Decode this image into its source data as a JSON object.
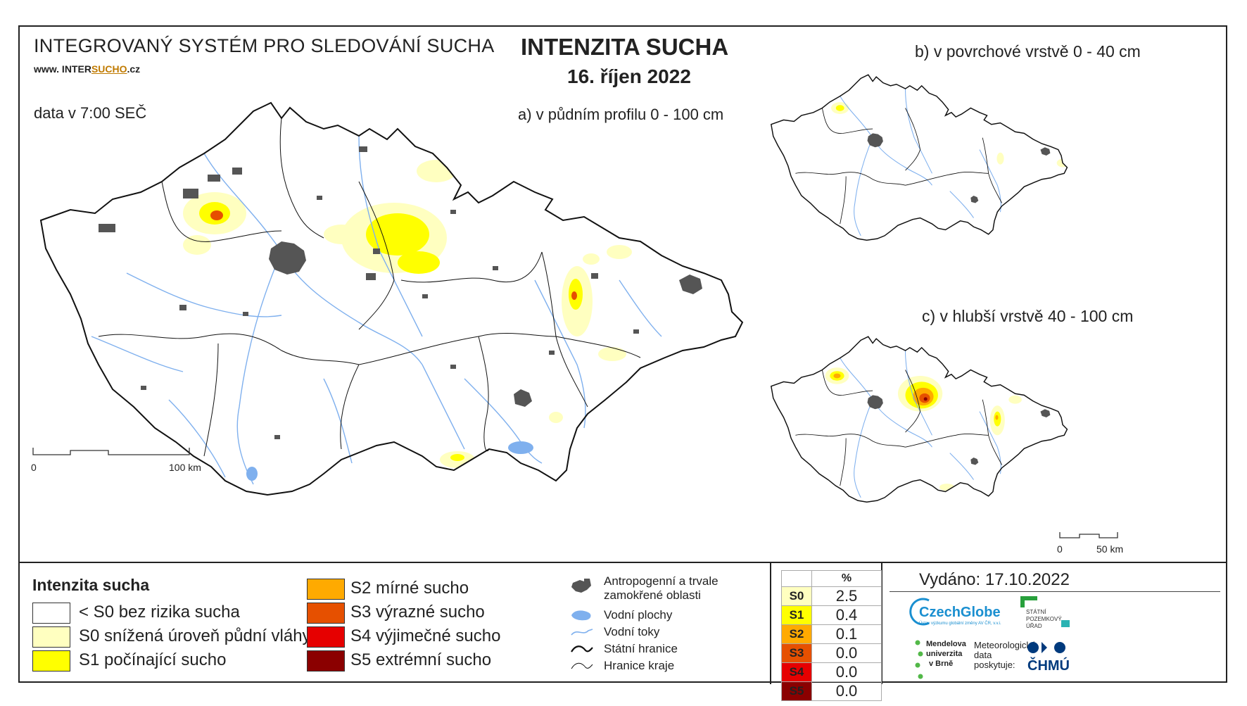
{
  "header": {
    "system_title": "INTEGROVANÝ SYSTÉM PRO SLEDOVÁNÍ SUCHA",
    "website_prefix": "www. INTER",
    "website_mid": "SUCHO",
    "website_suffix": ".cz",
    "data_time": "data v 7:00 SEČ",
    "main_title": "INTENZITA SUCHA",
    "main_date": "16. říjen 2022"
  },
  "maps": {
    "a_title": "a) v půdním profilu 0 - 100 cm",
    "b_title": "b) v povrchové vrstvě 0 - 40 cm",
    "c_title": "c) v hlubší vrstvě 40 - 100 cm",
    "scale_a_start": "0",
    "scale_a_end": "100 km",
    "scale_c_start": "0",
    "scale_c_end": "50 km"
  },
  "legend": {
    "title": "Intenzita sucha",
    "classes": [
      {
        "label": "< S0 bez rizika sucha",
        "color": "#ffffff"
      },
      {
        "label": "S0 snížená úroveň půdní vláhy",
        "color": "#ffffc0"
      },
      {
        "label": "S1 počínající sucho",
        "color": "#ffff00"
      },
      {
        "label": "S2 mírné sucho",
        "color": "#ffaa00"
      },
      {
        "label": "S3 výrazné sucho",
        "color": "#e65000"
      },
      {
        "label": "S4 výjimečné sucho",
        "color": "#e60000"
      },
      {
        "label": "S5 extrémní sucho",
        "color": "#8b0000"
      }
    ],
    "symbols": {
      "anthropogenic_1": "Antropogenní a trvale",
      "anthropogenic_2": "zamokřené oblasti",
      "water_bodies": "Vodní plochy",
      "water_streams": "Vodní toky",
      "state_border": "Státní hranice",
      "region_border": "Hranice kraje"
    }
  },
  "stats": {
    "header": "%",
    "rows": [
      {
        "code": "S0",
        "value": "2.5",
        "color": "#ffffc0"
      },
      {
        "code": "S1",
        "value": "0.4",
        "color": "#ffff00"
      },
      {
        "code": "S2",
        "value": "0.1",
        "color": "#ffaa00"
      },
      {
        "code": "S3",
        "value": "0.0",
        "color": "#e65000"
      },
      {
        "code": "S4",
        "value": "0.0",
        "color": "#e60000"
      },
      {
        "code": "S5",
        "value": "0.0",
        "color": "#8b0000"
      }
    ]
  },
  "footer": {
    "issued": "Vydáno: 17.10.2022",
    "logo_czechglobe": "CzechGlobe",
    "logo_czechglobe_sub": "Ústav výzkumu globální změny AV ČR, v.v.i.",
    "logo_spu_1": "STÁTNÍ",
    "logo_spu_2": "POZEMKOVÝ",
    "logo_spu_3": "ÚŘAD",
    "logo_mendelu_1": "Mendelova",
    "logo_mendelu_2": "univerzita",
    "logo_mendelu_3": "v Brně",
    "meteo_1": "Meteorologická",
    "meteo_2": "data",
    "meteo_3": "poskytuje:",
    "logo_chmu": "ČHMÚ"
  }
}
